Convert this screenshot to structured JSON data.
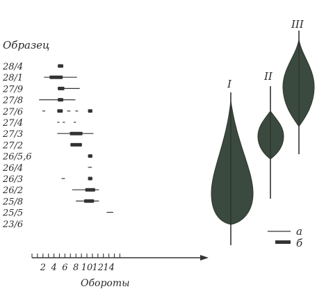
{
  "chart_data": {
    "type": "range-bar",
    "ylabel": "Образец",
    "xlabel": "Обороты",
    "x_ticks": [
      "2",
      "4",
      "6",
      "8",
      "10",
      "12",
      "14"
    ],
    "xlim": [
      0,
      16
    ],
    "samples": [
      {
        "label": "28/4",
        "thin": [],
        "thick": [
          [
            4.7,
            5.7
          ]
        ]
      },
      {
        "label": "28/1",
        "thin": [
          [
            2.2,
            8.2
          ]
        ],
        "thick": [
          [
            3.2,
            5.6
          ]
        ]
      },
      {
        "label": "27/9",
        "thin": [
          [
            4.7,
            8.7
          ]
        ],
        "thick": [
          [
            4.7,
            5.9
          ]
        ]
      },
      {
        "label": "27/8",
        "thin": [
          [
            1.3,
            7.9
          ]
        ],
        "thick": [
          [
            4.7,
            5.7
          ]
        ]
      },
      {
        "label": "27/6",
        "thin": [
          [
            1.9,
            2.4
          ],
          [
            6.4,
            7.0
          ],
          [
            7.9,
            8.4
          ]
        ],
        "thick": [
          [
            4.6,
            5.6
          ],
          [
            10.2,
            11.0
          ]
        ]
      },
      {
        "label": "27/4",
        "thin": [
          [
            4.6,
            5.0
          ],
          [
            5.6,
            6.0
          ],
          [
            7.6,
            8.0
          ]
        ],
        "thick": []
      },
      {
        "label": "27/3",
        "thin": [
          [
            4.6,
            11.2
          ]
        ],
        "thick": [
          [
            6.9,
            9.2
          ]
        ]
      },
      {
        "label": "27/2",
        "thin": [],
        "thick": [
          [
            7.0,
            9.1
          ]
        ]
      },
      {
        "label": "26/5,6",
        "thin": [],
        "thick": [
          [
            10.2,
            11.0
          ]
        ]
      },
      {
        "label": "26/4",
        "thin": [
          [
            10.2,
            10.9
          ]
        ],
        "thick": []
      },
      {
        "label": "26/3",
        "thin": [
          [
            5.4,
            6.0
          ]
        ],
        "thick": [
          [
            10.2,
            11.0
          ]
        ]
      },
      {
        "label": "26/2",
        "thin": [
          [
            7.3,
            12.2
          ]
        ],
        "thick": [
          [
            9.7,
            11.5
          ]
        ]
      },
      {
        "label": "25/8",
        "thin": [
          [
            8.0,
            12.2
          ]
        ],
        "thick": [
          [
            9.5,
            11.3
          ]
        ]
      },
      {
        "label": "25/5",
        "thin": [
          [
            13.6,
            14.8
          ]
        ],
        "thick": []
      },
      {
        "label": "23/6",
        "thin": [],
        "thick": []
      }
    ],
    "distributions": [
      {
        "label": "I"
      },
      {
        "label": "II"
      },
      {
        "label": "III"
      }
    ],
    "legend": [
      {
        "key": "а",
        "style": "thin line"
      },
      {
        "key": "б",
        "style": "thick bar"
      }
    ]
  }
}
